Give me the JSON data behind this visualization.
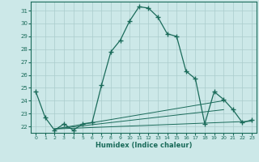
{
  "xlabel": "Humidex (Indice chaleur)",
  "bg_color": "#cce8e8",
  "grid_color": "#aacccc",
  "line_color": "#1a6b5a",
  "xlim": [
    -0.5,
    23.5
  ],
  "ylim": [
    21.5,
    31.7
  ],
  "yticks": [
    22,
    23,
    24,
    25,
    26,
    27,
    28,
    29,
    30,
    31
  ],
  "xticks": [
    0,
    1,
    2,
    3,
    4,
    5,
    6,
    7,
    8,
    9,
    10,
    11,
    12,
    13,
    14,
    15,
    16,
    17,
    18,
    19,
    20,
    21,
    22,
    23
  ],
  "curve1_x": [
    0,
    1,
    2,
    3,
    4,
    5,
    6,
    7,
    8,
    9,
    10,
    11,
    12,
    13,
    14,
    15,
    16,
    17,
    18,
    19,
    20,
    21,
    22,
    23
  ],
  "curve1_y": [
    24.7,
    22.7,
    21.7,
    22.2,
    21.7,
    22.2,
    22.3,
    25.2,
    27.8,
    28.7,
    30.2,
    31.3,
    31.2,
    30.5,
    29.2,
    29.0,
    26.3,
    25.7,
    22.2,
    24.7,
    24.1,
    23.3,
    22.3,
    22.5
  ],
  "line1_x": [
    2,
    23
  ],
  "line1_y": [
    21.8,
    22.4
  ],
  "line2_x": [
    2,
    20
  ],
  "line2_y": [
    21.8,
    24.0
  ],
  "line3_x": [
    2,
    20
  ],
  "line3_y": [
    21.8,
    23.3
  ]
}
